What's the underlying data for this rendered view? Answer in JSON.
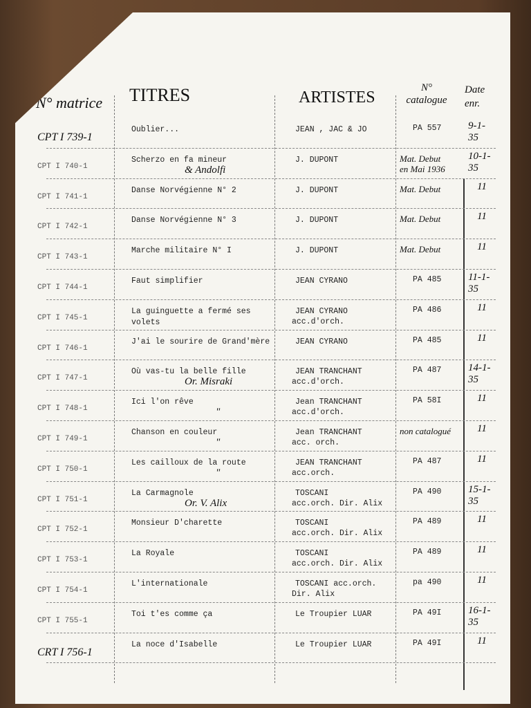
{
  "header": {
    "matrice": "N° matrice",
    "titres": "TITRES",
    "artistes": "ARTISTES",
    "catalogue": [
      "N°",
      "catalogue"
    ],
    "date": [
      "Date",
      "enr."
    ]
  },
  "rows": [
    {
      "matrice": "CPT I 739-1",
      "titre": [
        "Oublier..."
      ],
      "artiste": [
        "JEAN , JAC & JO"
      ],
      "catalogue": [
        "PA 557"
      ],
      "date": [
        "9-1-",
        "35"
      ]
    },
    {
      "matrice": "CPT I 740-1",
      "titre": [
        "Scherzo en fa mineur"
      ],
      "artiste": [
        "J. DUPONT"
      ],
      "note": "& Andolfi",
      "catalogue": [
        "Mat. Debut",
        "en Mai 1936"
      ],
      "date": [
        "10-1-",
        "35"
      ]
    },
    {
      "matrice": "CPT I 741-1",
      "titre": [
        "Danse Norvégienne N° 2"
      ],
      "artiste": [
        "J. DUPONT"
      ],
      "catalogue": [
        "Mat. Debut"
      ],
      "date": [
        "11"
      ]
    },
    {
      "matrice": "CPT I 742-1",
      "titre": [
        "Danse Norvégienne N° 3"
      ],
      "artiste": [
        "J. DUPONT"
      ],
      "catalogue": [
        "Mat. Debut"
      ],
      "date": [
        "11"
      ]
    },
    {
      "matrice": "CPT I 743-1",
      "titre": [
        "Marche militaire N° I"
      ],
      "artiste": [
        "J. DUPONT"
      ],
      "catalogue": [
        "Mat. Debut"
      ],
      "date": [
        "11"
      ]
    },
    {
      "matrice": "CPT I 744-1",
      "titre": [
        "Faut simplifier"
      ],
      "artiste": [
        "JEAN CYRANO"
      ],
      "catalogue": [
        "PA 485"
      ],
      "date": [
        "11-1-",
        "35"
      ]
    },
    {
      "matrice": "CPT I 745-1",
      "titre": [
        "La guinguette a fermé ses",
        "volets"
      ],
      "artiste": [
        "JEAN CYRANO",
        "acc.d'orch."
      ],
      "catalogue": [
        "PA 486"
      ],
      "date": [
        "11"
      ]
    },
    {
      "matrice": "CPT I 746-1",
      "titre": [
        "J'ai le sourire de Grand'mère"
      ],
      "artiste": [
        "JEAN CYRANO"
      ],
      "catalogue": [
        "PA 485"
      ],
      "date": [
        "11"
      ]
    },
    {
      "matrice": "CPT I 747-1",
      "titre": [
        "Où vas-tu la belle fille"
      ],
      "note": "Or. Misraki",
      "artiste": [
        "JEAN TRANCHANT",
        "acc.d'orch."
      ],
      "catalogue": [
        "PA 487"
      ],
      "date": [
        "14-1-",
        "35"
      ]
    },
    {
      "matrice": "CPT I 748-1",
      "titre": [
        "Ici l'on rêve"
      ],
      "note": "\"",
      "artiste": [
        "Jean TRANCHANT",
        "acc.d'orch."
      ],
      "catalogue": [
        "PA 58I"
      ],
      "date": [
        "11"
      ]
    },
    {
      "matrice": "CPT I 749-1",
      "titre": [
        "Chanson en couleur"
      ],
      "note": "\"",
      "artiste": [
        "Jean TRANCHANT",
        "acc. orch."
      ],
      "catalogue": [
        "non catalogué"
      ],
      "date": [
        "11"
      ]
    },
    {
      "matrice": "CPT I 750-1",
      "titre": [
        "Les cailloux de la route"
      ],
      "note": "\"",
      "artiste": [
        "JEAN TRANCHANT",
        "acc.orch."
      ],
      "catalogue": [
        "PA 487"
      ],
      "date": [
        "11"
      ]
    },
    {
      "matrice": "CPT I 751-1",
      "titre": [
        "La  Carmagnole"
      ],
      "note": "Or. V. Alix",
      "artiste": [
        "TOSCANI",
        "acc.orch. Dir. Alix"
      ],
      "catalogue": [
        "PA 490"
      ],
      "date": [
        "15-1-",
        "35"
      ]
    },
    {
      "matrice": "CPT I 752-1",
      "titre": [
        "Monsieur D'charette"
      ],
      "artiste": [
        "TOSCANI",
        "acc.orch. Dir. Alix"
      ],
      "catalogue": [
        "PA 489"
      ],
      "date": [
        "11"
      ]
    },
    {
      "matrice": "CPT I 753-1",
      "titre": [
        "La Royale"
      ],
      "artiste": [
        "TOSCANI",
        "acc.orch. Dir. Alix"
      ],
      "catalogue": [
        "PA 489"
      ],
      "date": [
        "11"
      ]
    },
    {
      "matrice": "CPT I 754-1",
      "titre": [
        "L'internationale"
      ],
      "artiste": [
        "TOSCANI  acc.orch.",
        "Dir. Alix"
      ],
      "catalogue": [
        "pa 490"
      ],
      "date": [
        "11"
      ]
    },
    {
      "matrice": "CPT I 755-1",
      "titre": [
        "Toi t'es comme ça"
      ],
      "artiste": [
        "Le Troupier LUAR"
      ],
      "catalogue": [
        "PA 49I"
      ],
      "date": [
        "16-1-",
        "35"
      ]
    },
    {
      "matrice": "CRT I 756-1",
      "titre": [
        "La noce d'Isabelle"
      ],
      "artiste": [
        "Le Troupier LUAR"
      ],
      "catalogue": [
        "PA 49I"
      ],
      "date": [
        "11"
      ]
    }
  ]
}
